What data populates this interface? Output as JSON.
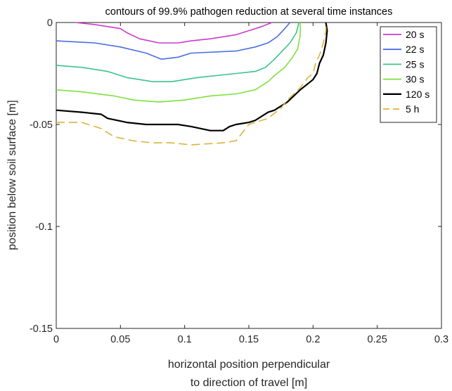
{
  "chart_data": {
    "type": "line",
    "title": "contours of 99.9% pathogen reduction at several time instances",
    "xlabel": [
      "horizontal position perpendicular",
      "to direction of travel [m]"
    ],
    "ylabel": "position below soil surface [m]",
    "xlim": [
      0,
      0.3
    ],
    "ylim": [
      -0.15,
      0
    ],
    "xticks": [
      0,
      0.05,
      0.1,
      0.15,
      0.2,
      0.25,
      0.3
    ],
    "xtick_labels": [
      "0",
      "0.05",
      "0.1",
      "0.15",
      "0.2",
      "0.25",
      "0.3"
    ],
    "yticks": [
      0,
      -0.05,
      -0.1,
      -0.15
    ],
    "ytick_labels": [
      "0",
      "-0.05",
      "-0.1",
      "-0.15"
    ],
    "grid": false,
    "legend_position": "top-right",
    "series": [
      {
        "name": "20 s",
        "color": "#c83cc8",
        "dash": "solid",
        "points": [
          [
            0.015,
            0
          ],
          [
            0.03,
            -0.001
          ],
          [
            0.05,
            -0.003
          ],
          [
            0.055,
            -0.005
          ],
          [
            0.065,
            -0.008
          ],
          [
            0.08,
            -0.01
          ],
          [
            0.095,
            -0.01
          ],
          [
            0.105,
            -0.009
          ],
          [
            0.12,
            -0.008
          ],
          [
            0.14,
            -0.006
          ],
          [
            0.15,
            -0.004
          ],
          [
            0.16,
            -0.002
          ],
          [
            0.168,
            0
          ]
        ]
      },
      {
        "name": "22 s",
        "color": "#4a6ee0",
        "dash": "solid",
        "points": [
          [
            0,
            -0.009
          ],
          [
            0.03,
            -0.01
          ],
          [
            0.05,
            -0.012
          ],
          [
            0.07,
            -0.015
          ],
          [
            0.082,
            -0.018
          ],
          [
            0.095,
            -0.017
          ],
          [
            0.105,
            -0.015
          ],
          [
            0.14,
            -0.014
          ],
          [
            0.155,
            -0.012
          ],
          [
            0.165,
            -0.01
          ],
          [
            0.172,
            -0.007
          ],
          [
            0.178,
            -0.003
          ],
          [
            0.182,
            0
          ]
        ]
      },
      {
        "name": "25 s",
        "color": "#3cc38a",
        "dash": "solid",
        "points": [
          [
            0,
            -0.021
          ],
          [
            0.02,
            -0.022
          ],
          [
            0.04,
            -0.024
          ],
          [
            0.055,
            -0.027
          ],
          [
            0.075,
            -0.029
          ],
          [
            0.09,
            -0.029
          ],
          [
            0.11,
            -0.027
          ],
          [
            0.14,
            -0.025
          ],
          [
            0.155,
            -0.024
          ],
          [
            0.163,
            -0.022
          ],
          [
            0.17,
            -0.018
          ],
          [
            0.176,
            -0.014
          ],
          [
            0.182,
            -0.01
          ],
          [
            0.187,
            -0.005
          ],
          [
            0.189,
            0
          ]
        ]
      },
      {
        "name": "30 s",
        "color": "#7ee03c",
        "dash": "solid",
        "points": [
          [
            0,
            -0.033
          ],
          [
            0.02,
            -0.034
          ],
          [
            0.045,
            -0.036
          ],
          [
            0.06,
            -0.038
          ],
          [
            0.08,
            -0.039
          ],
          [
            0.1,
            -0.038
          ],
          [
            0.12,
            -0.036
          ],
          [
            0.14,
            -0.035
          ],
          [
            0.155,
            -0.033
          ],
          [
            0.165,
            -0.029
          ],
          [
            0.17,
            -0.026
          ],
          [
            0.178,
            -0.022
          ],
          [
            0.184,
            -0.017
          ],
          [
            0.188,
            -0.013
          ],
          [
            0.19,
            -0.006
          ],
          [
            0.19,
            0
          ]
        ]
      },
      {
        "name": "120 s",
        "color": "#000000",
        "dash": "solid",
        "points": [
          [
            0,
            -0.043
          ],
          [
            0.02,
            -0.044
          ],
          [
            0.035,
            -0.045
          ],
          [
            0.04,
            -0.047
          ],
          [
            0.055,
            -0.049
          ],
          [
            0.07,
            -0.05
          ],
          [
            0.095,
            -0.05
          ],
          [
            0.105,
            -0.051
          ],
          [
            0.12,
            -0.053
          ],
          [
            0.13,
            -0.053
          ],
          [
            0.135,
            -0.051
          ],
          [
            0.14,
            -0.05
          ],
          [
            0.15,
            -0.049
          ],
          [
            0.155,
            -0.048
          ],
          [
            0.165,
            -0.044
          ],
          [
            0.17,
            -0.043
          ],
          [
            0.18,
            -0.039
          ],
          [
            0.19,
            -0.033
          ],
          [
            0.2,
            -0.028
          ],
          [
            0.203,
            -0.025
          ],
          [
            0.205,
            -0.02
          ],
          [
            0.208,
            -0.016
          ],
          [
            0.21,
            -0.01
          ],
          [
            0.211,
            -0.004
          ],
          [
            0.21,
            0
          ]
        ]
      },
      {
        "name": "5 h",
        "color": "#d9b43a",
        "dash": "dashed",
        "points": [
          [
            0,
            -0.049
          ],
          [
            0.02,
            -0.049
          ],
          [
            0.035,
            -0.052
          ],
          [
            0.045,
            -0.056
          ],
          [
            0.06,
            -0.058
          ],
          [
            0.075,
            -0.059
          ],
          [
            0.09,
            -0.059
          ],
          [
            0.105,
            -0.06
          ],
          [
            0.13,
            -0.059
          ],
          [
            0.14,
            -0.058
          ],
          [
            0.15,
            -0.05
          ],
          [
            0.155,
            -0.049
          ],
          [
            0.165,
            -0.047
          ],
          [
            0.175,
            -0.042
          ],
          [
            0.18,
            -0.038
          ],
          [
            0.19,
            -0.032
          ],
          [
            0.196,
            -0.027
          ],
          [
            0.2,
            -0.025
          ],
          [
            0.202,
            -0.02
          ],
          [
            0.205,
            -0.016
          ],
          [
            0.208,
            -0.01
          ],
          [
            0.21,
            -0.004
          ],
          [
            0.21,
            0
          ]
        ]
      }
    ]
  }
}
